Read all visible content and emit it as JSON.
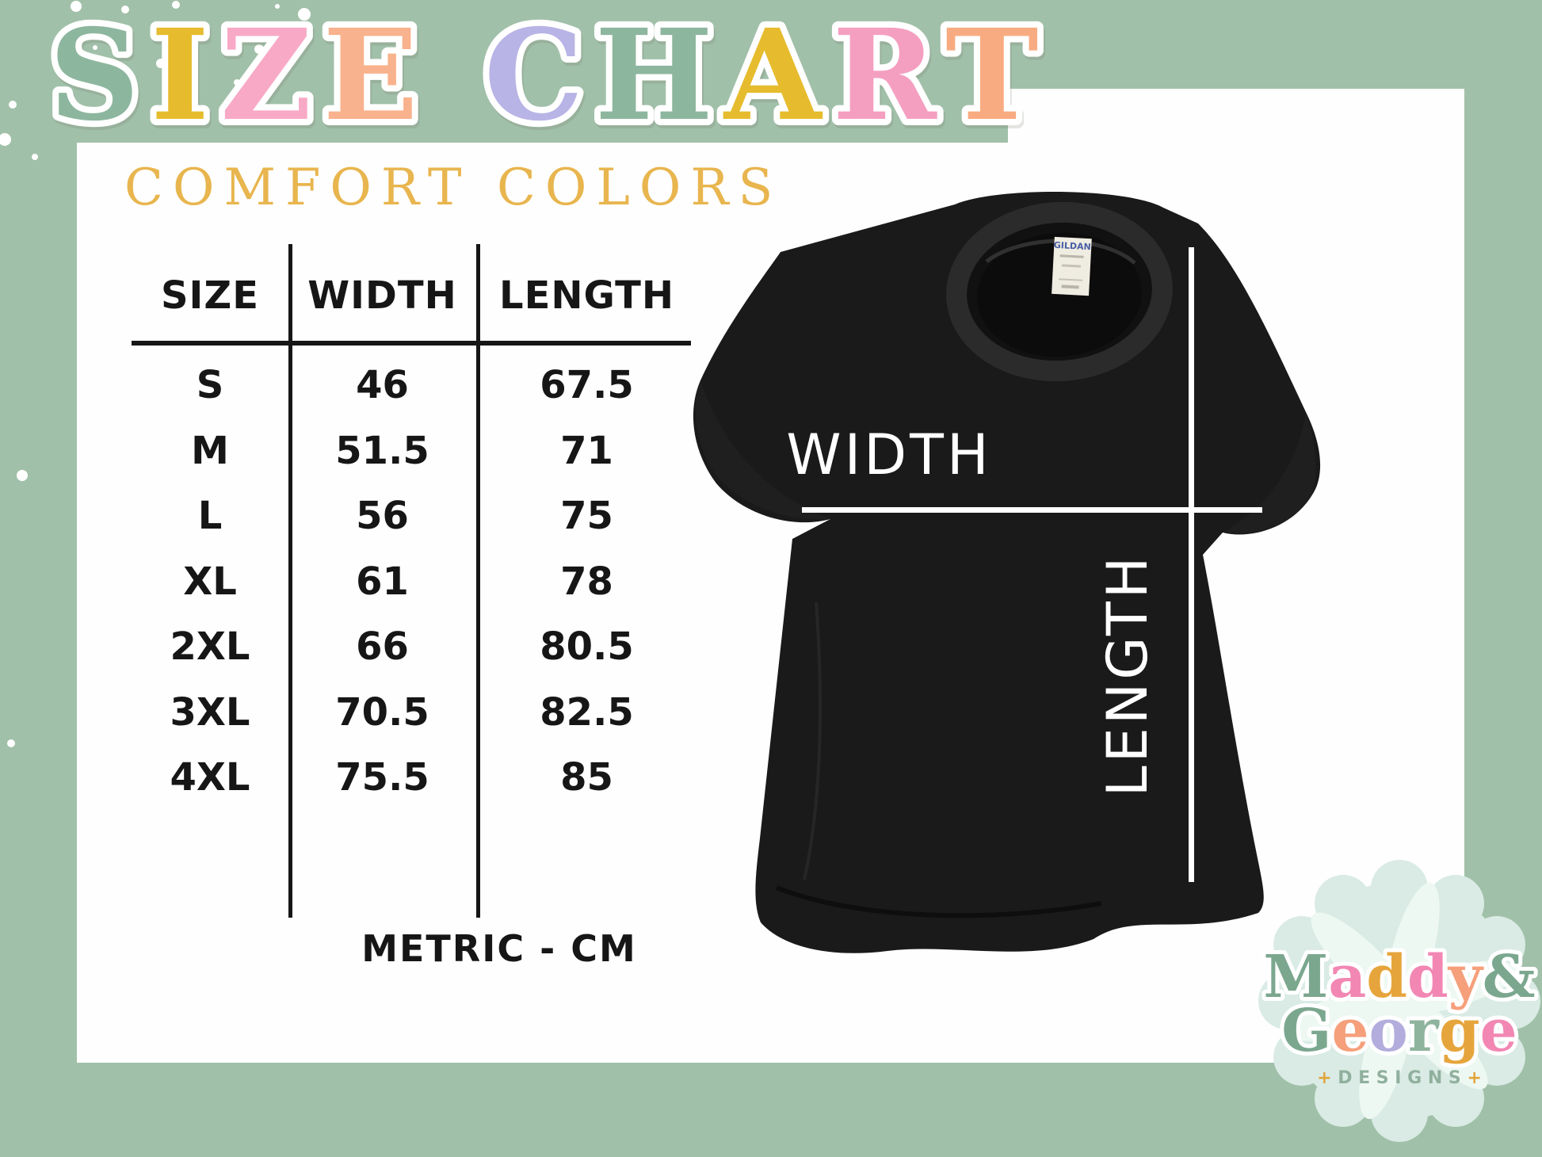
{
  "page": {
    "background_color": "#a1c0a9",
    "card_color": "#fefefe",
    "table_line_color": "#161616"
  },
  "title": {
    "text": "SIZE CHART",
    "outline_color": "#ffffff",
    "letters": [
      {
        "ch": "S",
        "color": "#8db69e"
      },
      {
        "ch": "I",
        "color": "#e6bc2e"
      },
      {
        "ch": "Z",
        "color": "#f8a9c6"
      },
      {
        "ch": "E",
        "color": "#f8b28d"
      },
      {
        "ch": " ",
        "color": "#ffffff"
      },
      {
        "ch": "C",
        "color": "#b9b4e6"
      },
      {
        "ch": "H",
        "color": "#8db69e"
      },
      {
        "ch": "A",
        "color": "#e6bc2e"
      },
      {
        "ch": "R",
        "color": "#f59fc0"
      },
      {
        "ch": "T",
        "color": "#f8ab80"
      }
    ]
  },
  "subtitle": {
    "text": "COMFORT COLORS",
    "color": "#e8b54e"
  },
  "chart_data": {
    "type": "table",
    "title": "SIZE CHART",
    "subtitle": "COMFORT COLORS",
    "units_note": "METRIC - CM",
    "columns": [
      "SIZE",
      "WIDTH",
      "LENGTH"
    ],
    "rows": [
      [
        "S",
        "46",
        "67.5"
      ],
      [
        "M",
        "51.5",
        "71"
      ],
      [
        "L",
        "56",
        "75"
      ],
      [
        "XL",
        "61",
        "78"
      ],
      [
        "2XL",
        "66",
        "80.5"
      ],
      [
        "3XL",
        "70.5",
        "82.5"
      ],
      [
        "4XL",
        "75.5",
        "85"
      ]
    ]
  },
  "shirt": {
    "color": "#1a1a1a",
    "width_label": "WIDTH",
    "length_label": "LENGTH",
    "measure_line_color": "#ffffff",
    "tag_brand": "GILDAN",
    "tag_brand_color": "#4a5fa5"
  },
  "logo": {
    "line1": "Maddy&",
    "line2": "George",
    "designs_label": "DESIGNS",
    "plus": "+",
    "plus_color": "#e2a53d",
    "designs_color": "#90b09d",
    "badge_color": "#d9ebe4",
    "flower_color": "#eef8f3",
    "line1_letters": [
      {
        "ch": "M",
        "color": "#7ba78f"
      },
      {
        "ch": "a",
        "color": "#f287b3"
      },
      {
        "ch": "d",
        "color": "#e6a53c"
      },
      {
        "ch": "d",
        "color": "#f287b3"
      },
      {
        "ch": "y",
        "color": "#f5a07b"
      },
      {
        "ch": "&",
        "color": "#7ba78f"
      }
    ],
    "line2_letters": [
      {
        "ch": "G",
        "color": "#7ba78f"
      },
      {
        "ch": "e",
        "color": "#f5a07b"
      },
      {
        "ch": "o",
        "color": "#b2addc"
      },
      {
        "ch": "r",
        "color": "#8fb49e"
      },
      {
        "ch": "g",
        "color": "#e6a53c"
      },
      {
        "ch": "e",
        "color": "#f287b3"
      }
    ]
  },
  "decor": {
    "dots": [
      [
        96,
        8,
        7
      ],
      [
        158,
        12,
        5
      ],
      [
        222,
        6,
        5
      ],
      [
        384,
        18,
        8
      ],
      [
        327,
        62,
        6
      ],
      [
        428,
        68,
        5
      ],
      [
        203,
        80,
        6
      ],
      [
        299,
        104,
        4
      ],
      [
        120,
        60,
        3
      ],
      [
        16,
        132,
        5
      ],
      [
        6,
        176,
        8
      ],
      [
        44,
        198,
        4
      ],
      [
        350,
        8,
        3
      ],
      [
        460,
        40,
        3
      ],
      [
        28,
        600,
        7
      ],
      [
        14,
        938,
        5
      ]
    ]
  }
}
